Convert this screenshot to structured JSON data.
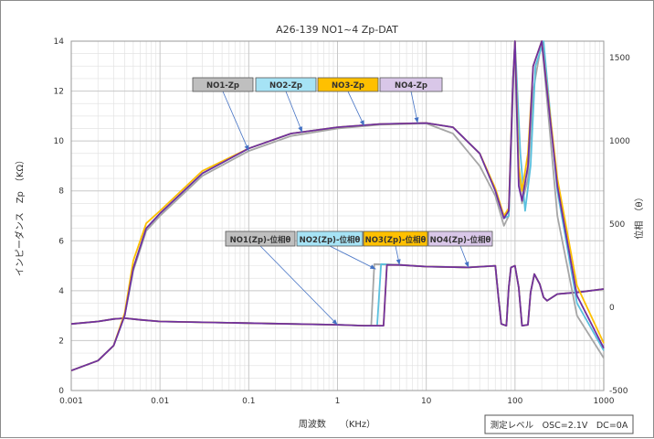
{
  "chart_data": {
    "type": "line",
    "title": "A26-139 NO1~4 Zp-DAT",
    "xlabel": "周波数　　（KHz）",
    "ylabel_left": "インピーダンス　Zp　（KΩ）",
    "ylabel_right": "位相　（θ）",
    "x_scale": "log",
    "xlim": [
      0.001,
      1000
    ],
    "ylim_left": [
      0,
      14
    ],
    "ylim_right": [
      -500,
      1600
    ],
    "x_ticks": [
      "0.001",
      "0.01",
      "0.1",
      "1",
      "10",
      "100",
      "1000"
    ],
    "y_ticks_left": [
      "0",
      "2",
      "4",
      "6",
      "8",
      "10",
      "12",
      "14"
    ],
    "y_ticks_right": [
      "-500",
      "0",
      "500",
      "1000",
      "1500"
    ],
    "grid": true,
    "note": "測定レベル　OSC=2.1V　DC=0A",
    "legend_zp": [
      "NO1-Zp",
      "NO2-Zp",
      "NO3-Zp",
      "NO4-Zp"
    ],
    "legend_phase": [
      "NO1(Zp)-位相θ",
      "NO2(Zp)-位相θ",
      "NO3(Zp)-位相θ",
      "NO4(Zp)-位相θ"
    ],
    "colors": [
      "#a6a6a6",
      "#5bc0de",
      "#ffc000",
      "#7030a0"
    ],
    "legend_fill": [
      "#bfbfbf",
      "#a6e3f5",
      "#ffc000",
      "#d9c7e8"
    ],
    "series": [
      {
        "name": "NO1-Zp",
        "axis": "left",
        "x": [
          0.001,
          0.002,
          0.003,
          0.004,
          0.005,
          0.007,
          0.01,
          0.03,
          0.1,
          0.3,
          1,
          3,
          10,
          20,
          40,
          60,
          75,
          85,
          95,
          100,
          110,
          120,
          140,
          160,
          200,
          300,
          500,
          1000
        ],
        "y": [
          0.8,
          1.2,
          1.8,
          3.0,
          4.8,
          6.4,
          7.0,
          8.6,
          9.6,
          10.2,
          10.5,
          10.65,
          10.7,
          10.3,
          9.0,
          7.8,
          6.6,
          7.0,
          12.0,
          14.0,
          9.0,
          7.5,
          8.5,
          12.0,
          14.0,
          7.0,
          3.0,
          1.3
        ]
      },
      {
        "name": "NO2-Zp",
        "axis": "left",
        "x": [
          0.001,
          0.002,
          0.003,
          0.004,
          0.005,
          0.007,
          0.01,
          0.03,
          0.1,
          0.3,
          1,
          3,
          10,
          20,
          40,
          60,
          75,
          85,
          95,
          100,
          115,
          130,
          150,
          170,
          210,
          300,
          500,
          1000
        ],
        "y": [
          0.8,
          1.2,
          1.8,
          3.0,
          4.9,
          6.5,
          7.1,
          8.7,
          9.7,
          10.3,
          10.55,
          10.68,
          10.72,
          10.55,
          9.5,
          8.0,
          6.9,
          7.0,
          12.5,
          14.0,
          9.5,
          7.2,
          9.0,
          13.0,
          14.0,
          8.0,
          3.5,
          1.6
        ]
      },
      {
        "name": "NO3-Zp",
        "axis": "left",
        "x": [
          0.001,
          0.002,
          0.003,
          0.004,
          0.005,
          0.007,
          0.01,
          0.03,
          0.1,
          0.3,
          1,
          3,
          10,
          20,
          40,
          60,
          75,
          85,
          95,
          100,
          110,
          120,
          140,
          160,
          200,
          300,
          500,
          1000
        ],
        "y": [
          0.8,
          1.2,
          1.8,
          3.1,
          5.2,
          6.7,
          7.2,
          8.8,
          9.7,
          10.3,
          10.55,
          10.68,
          10.72,
          10.55,
          9.5,
          8.1,
          7.0,
          7.3,
          12.5,
          14.0,
          9.0,
          8.0,
          9.5,
          13.0,
          14.0,
          8.5,
          4.2,
          1.9
        ]
      },
      {
        "name": "NO4-Zp",
        "axis": "left",
        "x": [
          0.001,
          0.002,
          0.003,
          0.004,
          0.005,
          0.007,
          0.01,
          0.03,
          0.1,
          0.3,
          1,
          3,
          10,
          20,
          40,
          60,
          75,
          85,
          95,
          100,
          110,
          120,
          140,
          160,
          200,
          300,
          500,
          1000
        ],
        "y": [
          0.8,
          1.2,
          1.8,
          3.0,
          4.9,
          6.5,
          7.1,
          8.7,
          9.7,
          10.3,
          10.55,
          10.68,
          10.72,
          10.55,
          9.5,
          8.0,
          6.9,
          7.2,
          12.5,
          14.0,
          8.2,
          7.6,
          9.0,
          13.0,
          14.0,
          8.2,
          3.8,
          1.7
        ]
      },
      {
        "name": "NO1(Zp)-位相θ",
        "axis": "right",
        "x": [
          0.001,
          0.002,
          0.003,
          0.004,
          0.006,
          0.01,
          0.1,
          1,
          2,
          2.4,
          2.6,
          5,
          10,
          30,
          60,
          65,
          70,
          80,
          85,
          90,
          100,
          110,
          120,
          140,
          150,
          165,
          190,
          210,
          230,
          300,
          500,
          1000
        ],
        "y": [
          -100,
          -85,
          -70,
          -65,
          -75,
          -85,
          -95,
          -105,
          -110,
          -110,
          260,
          255,
          245,
          240,
          250,
          60,
          -100,
          -110,
          120,
          240,
          250,
          120,
          -110,
          -105,
          90,
          200,
          140,
          60,
          40,
          80,
          90,
          110
        ]
      },
      {
        "name": "NO2(Zp)-位相θ",
        "axis": "right",
        "x": [
          0.001,
          0.002,
          0.003,
          0.004,
          0.006,
          0.01,
          0.1,
          1,
          2,
          2.8,
          3.1,
          5,
          10,
          30,
          60,
          65,
          70,
          80,
          85,
          90,
          100,
          110,
          120,
          140,
          150,
          165,
          190,
          210,
          230,
          300,
          500,
          1000
        ],
        "y": [
          -100,
          -85,
          -70,
          -65,
          -75,
          -85,
          -95,
          -105,
          -110,
          -110,
          260,
          255,
          245,
          240,
          250,
          60,
          -100,
          -110,
          120,
          240,
          250,
          120,
          -110,
          -105,
          90,
          200,
          140,
          60,
          40,
          80,
          90,
          110
        ]
      },
      {
        "name": "NO3(Zp)-位相θ",
        "axis": "right",
        "x": [
          0.001,
          0.002,
          0.003,
          0.004,
          0.006,
          0.01,
          0.1,
          1,
          2,
          3.3,
          3.6,
          5,
          10,
          30,
          60,
          65,
          70,
          80,
          85,
          90,
          100,
          110,
          120,
          140,
          150,
          165,
          190,
          210,
          230,
          300,
          500,
          1000
        ],
        "y": [
          -100,
          -85,
          -70,
          -65,
          -75,
          -85,
          -95,
          -105,
          -110,
          -110,
          255,
          255,
          245,
          240,
          250,
          60,
          -100,
          -110,
          120,
          240,
          250,
          120,
          -110,
          -105,
          90,
          200,
          140,
          60,
          40,
          80,
          90,
          110
        ]
      },
      {
        "name": "NO4(Zp)-位相θ",
        "axis": "right",
        "x": [
          0.001,
          0.002,
          0.003,
          0.004,
          0.006,
          0.01,
          0.1,
          1,
          2,
          3.3,
          3.6,
          5,
          10,
          30,
          60,
          65,
          70,
          80,
          85,
          90,
          100,
          110,
          120,
          140,
          150,
          165,
          190,
          210,
          230,
          300,
          500,
          1000
        ],
        "y": [
          -100,
          -85,
          -70,
          -65,
          -75,
          -85,
          -95,
          -105,
          -110,
          -110,
          255,
          255,
          245,
          240,
          250,
          60,
          -100,
          -110,
          120,
          240,
          250,
          120,
          -110,
          -105,
          90,
          200,
          140,
          60,
          40,
          80,
          90,
          110
        ]
      }
    ],
    "legend_targets": [
      {
        "x": 0.1,
        "y": 9.6,
        "axis": "left"
      },
      {
        "x": 0.4,
        "y": 10.35,
        "axis": "left"
      },
      {
        "x": 2,
        "y": 10.6,
        "axis": "left"
      },
      {
        "x": 8,
        "y": 10.72,
        "axis": "left"
      },
      {
        "x": 1,
        "y": -105,
        "axis": "right"
      },
      {
        "x": 2.7,
        "y": 230,
        "axis": "right"
      },
      {
        "x": 5,
        "y": 255,
        "axis": "right"
      },
      {
        "x": 30,
        "y": 240,
        "axis": "right"
      }
    ]
  }
}
